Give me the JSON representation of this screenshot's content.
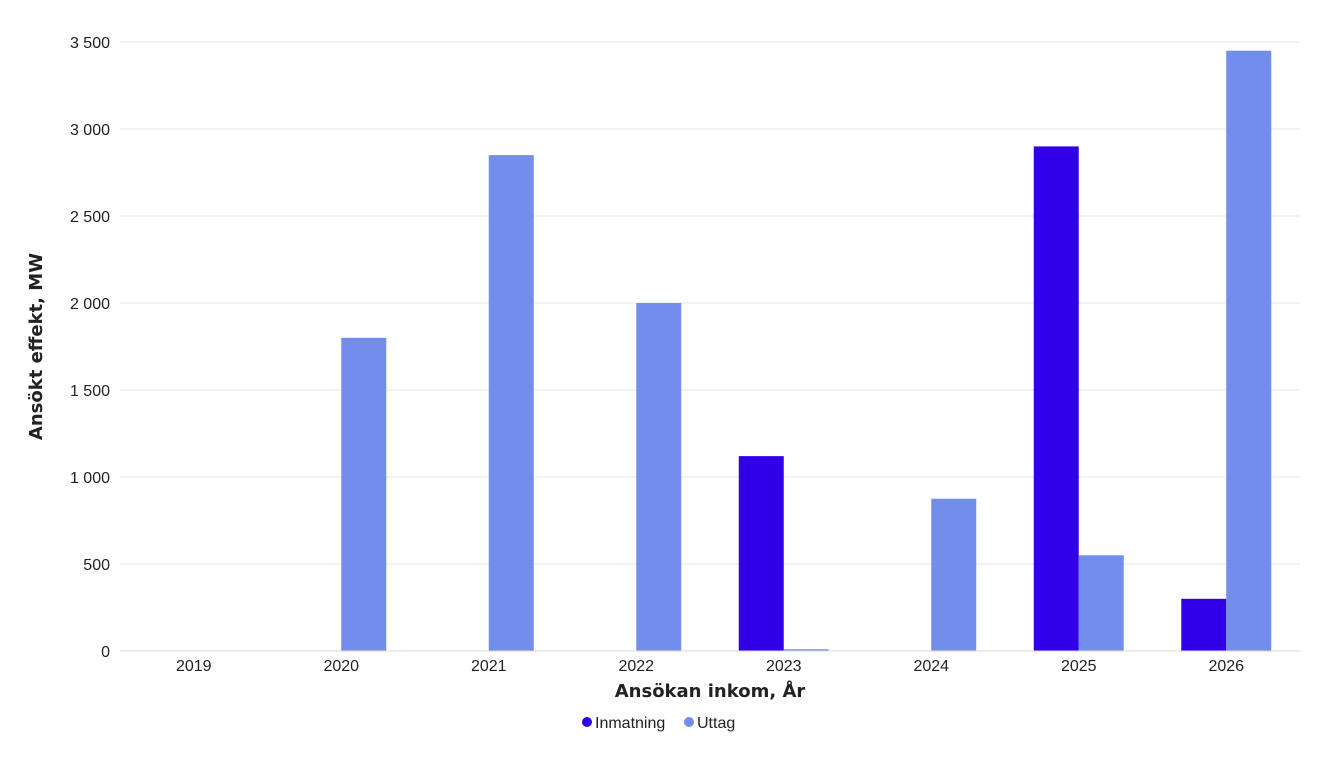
{
  "chart_data": {
    "type": "bar",
    "categories": [
      "2019",
      "2020",
      "2021",
      "2022",
      "2023",
      "2024",
      "2025",
      "2026"
    ],
    "series": [
      {
        "name": "Inmatning",
        "color": "#3100e8",
        "values": [
          0,
          0,
          0,
          0,
          1120,
          0,
          2900,
          300
        ]
      },
      {
        "name": "Uttag",
        "color": "#738ded",
        "values": [
          0,
          1800,
          2850,
          2000,
          10,
          875,
          550,
          3450
        ]
      }
    ],
    "xlabel": "Ansökan inkom, År",
    "ylabel": "Ansökt effekt, MW",
    "ylim": [
      0,
      3500
    ],
    "yticks": [
      0,
      500,
      1000,
      1500,
      2000,
      2500,
      3000,
      3500
    ],
    "ytick_labels": [
      "0",
      "500",
      "1 000",
      "1 500",
      "2 000",
      "2 500",
      "3 000",
      "3 500"
    ],
    "grid": true,
    "legend_position": "bottom-center"
  }
}
